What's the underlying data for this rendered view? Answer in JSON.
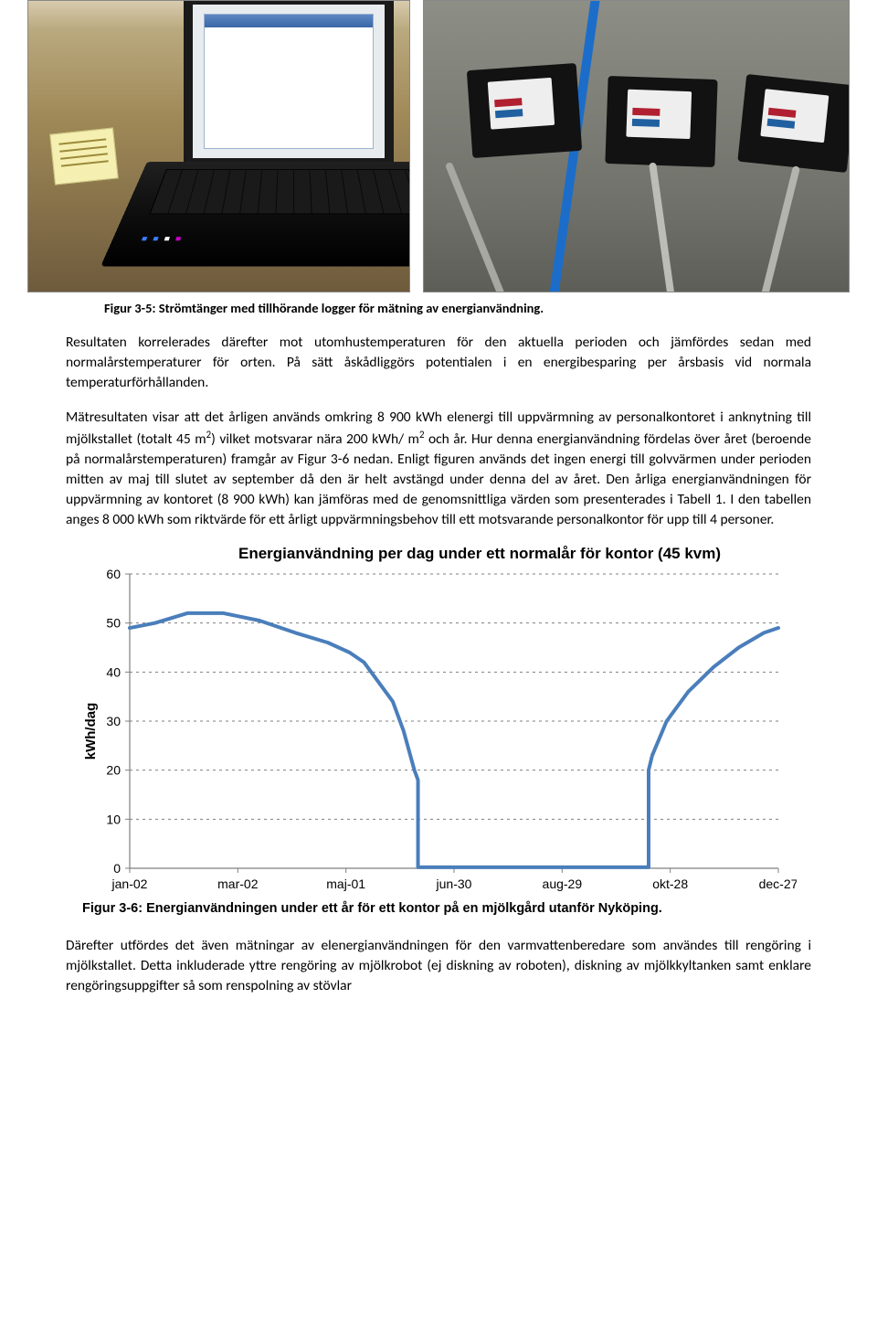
{
  "photos_caption": "Figur 3-5: Strömtänger med tillhörande logger för mätning av energianvändning.",
  "para1": "Resultaten korrelerades därefter mot utomhustemperaturen för den aktuella perioden och jämfördes sedan med normalårstemperaturer för orten. På sätt åskådliggörs potentialen i en energibesparing per årsbasis vid normala temperaturförhållanden.",
  "para2_a": "Mätresultaten visar att det årligen används omkring 8 900 kWh elenergi till uppvärmning av personalkontoret i anknytning till mjölkstallet (totalt 45 m",
  "para2_b": ") vilket motsvarar nära 200 kWh/ m",
  "para2_c": " och år. Hur denna energianvändning fördelas över året (beroende på normalårstemperaturen) framgår av Figur 3-6 nedan. Enligt figuren används det ingen energi till golvvärmen under perioden mitten av maj till slutet av september då den är helt avstängd under denna del av året. Den årliga energianvändningen för uppvärmning av kontoret (8 900 kWh) kan jämföras med de genomsnittliga värden som presenterades i Tabell 1. I den tabellen anges 8 000 kWh som riktvärde för ett årligt uppvärmningsbehov till ett motsvarande personalkontor för upp till 4 personer.",
  "chart": {
    "type": "line",
    "title": "Energianvändning per dag under ett normalår för kontor (45 kvm)",
    "ylabel": "kWh/dag",
    "ylim": [
      0,
      60
    ],
    "ytick_step": 10,
    "yticks": [
      "0",
      "10",
      "20",
      "30",
      "40",
      "50",
      "60"
    ],
    "xticks": [
      "jan-02",
      "mar-02",
      "maj-01",
      "jun-30",
      "aug-29",
      "okt-28",
      "dec-27"
    ],
    "x_positions": [
      0,
      60,
      120,
      180,
      240,
      300,
      360
    ],
    "x_domain": [
      0,
      360
    ],
    "points": [
      [
        0,
        49
      ],
      [
        14,
        50
      ],
      [
        32,
        52
      ],
      [
        52,
        52
      ],
      [
        72,
        50.5
      ],
      [
        92,
        48
      ],
      [
        110,
        46
      ],
      [
        122,
        44
      ],
      [
        130,
        42
      ],
      [
        138,
        38
      ],
      [
        146,
        34
      ],
      [
        152,
        28
      ],
      [
        158,
        20
      ],
      [
        160,
        18
      ],
      [
        160,
        0.2
      ],
      [
        180,
        0.2
      ],
      [
        210,
        0.2
      ],
      [
        240,
        0.2
      ],
      [
        270,
        0.2
      ],
      [
        288,
        0.2
      ],
      [
        288,
        20
      ],
      [
        290,
        23
      ],
      [
        298,
        30
      ],
      [
        310,
        36
      ],
      [
        324,
        41
      ],
      [
        338,
        45
      ],
      [
        352,
        48
      ],
      [
        360,
        49
      ]
    ],
    "line_color": "#4a7ebb",
    "line_width": 4,
    "grid_color": "#7f7f7f",
    "grid_dash": "3,4",
    "axis_color": "#808080",
    "background_color": "#ffffff",
    "title_fontsize": 17,
    "label_fontsize": 15,
    "tick_fontsize": 14
  },
  "chart_caption": "Figur 3-6: Energianvändningen under ett år för ett kontor på en mjölkgård utanför Nyköping.",
  "para3": "Därefter utfördes det även mätningar av elenergianvändningen för den varmvattenberedare som användes till rengöring i mjölkstallet. Detta inkluderade yttre rengöring av mjölkrobot (ej diskning av roboten), diskning av mjölkkyltanken samt enklare rengöringsuppgifter så som renspolning av stövlar"
}
